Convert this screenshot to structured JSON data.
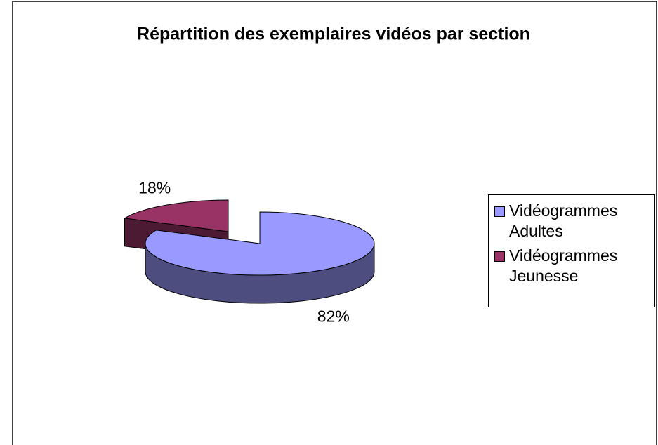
{
  "chart_data": {
    "type": "pie",
    "title": "Répartition des exemplaires vidéos par section",
    "categories": [
      "Vidéogrammes Adultes",
      "Vidéogrammes Jeunesse"
    ],
    "values": [
      82,
      18
    ],
    "value_labels": [
      "82%",
      "18%"
    ],
    "colors": [
      "#9999ff",
      "#993366"
    ],
    "legend": "right"
  }
}
